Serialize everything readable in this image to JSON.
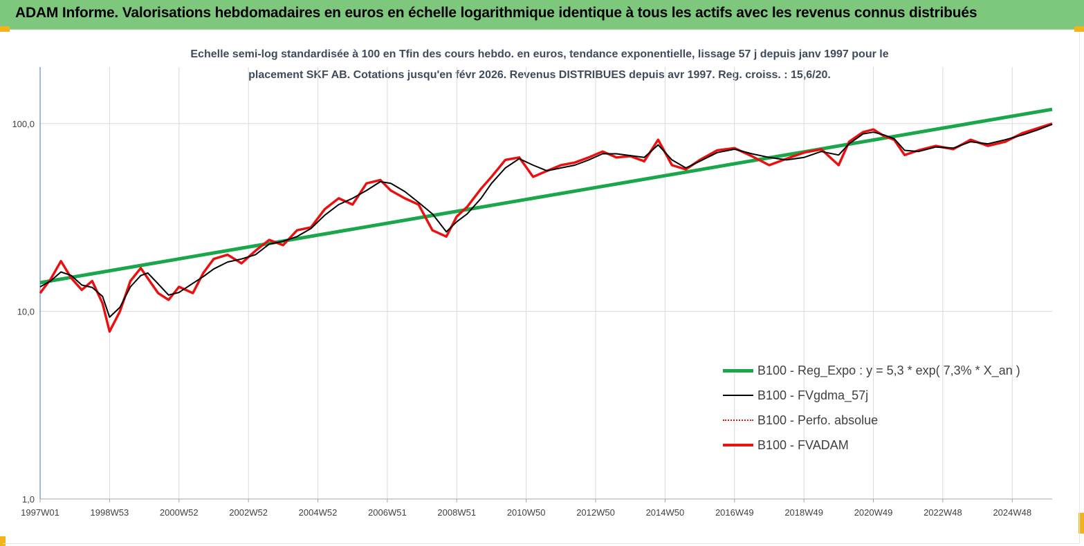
{
  "header": {
    "title": "ADAM Informe. Valorisations hebdomadaires en euros en échelle logarithmique identique à tous les actifs avec les revenus connus distribués"
  },
  "colors": {
    "header_bg": "#7ec87e",
    "corner_accent": "#f2b418",
    "trend": "#1aa64a",
    "smoothed": "#000000",
    "perf": "#e01010",
    "fvadam": "#ee1111",
    "grid": "#d9d9d9",
    "axis": "#4472c4"
  },
  "chart_data": {
    "type": "line",
    "title_lines": [
      "Echelle semi-log standardisée à 100 en Tfin des cours hebdo. en euros, tendance exponentielle, lissage 57 j depuis janv 1997 pour le",
      "placement SKF AB.  Cotations jusqu'en févr 2026. Revenus DISTRIBUES depuis avr 1997. Reg. croiss. : 15,6/20."
    ],
    "y_scale": "log",
    "ylim": [
      1,
      200
    ],
    "y_ticks": [
      1,
      10,
      100
    ],
    "y_tick_labels": [
      "1,0",
      "10,0",
      "100,0"
    ],
    "xlim": [
      1997.0,
      2026.15
    ],
    "x_ticks": [
      1997.0,
      1999.0,
      2001.0,
      2003.0,
      2005.0,
      2007.0,
      2009.0,
      2011.0,
      2013.0,
      2015.0,
      2017.0,
      2019.0,
      2021.0,
      2023.0,
      2025.0
    ],
    "x_tick_labels": [
      "1997W01",
      "1998W53",
      "2000W52",
      "2002W52",
      "2004W52",
      "2006W51",
      "2008W51",
      "2010W50",
      "2012W50",
      "2014W50",
      "2016W49",
      "2018W49",
      "2020W49",
      "2022W48",
      "2024W48"
    ],
    "grid": "vertical lines at x ticks, horizontal line at 10",
    "legend_position": "bottom-right",
    "series": [
      {
        "name": "B100 - Reg_Expo : y = 5,3 * exp( 7,3% *  X_an )",
        "style": "trend",
        "x": [
          1997.0,
          2026.15
        ],
        "y": [
          14.2,
          119.0
        ]
      },
      {
        "name": "B100 - FVgdma_57j",
        "style": "smoothed",
        "x": [
          1997.0,
          1997.3,
          1997.6,
          1997.9,
          1998.2,
          1998.5,
          1998.8,
          1999.0,
          1999.3,
          1999.6,
          1999.9,
          2000.1,
          2000.4,
          2000.7,
          2001.0,
          2001.4,
          2001.7,
          2002.0,
          2002.4,
          2002.8,
          2003.2,
          2003.6,
          2004.0,
          2004.4,
          2004.8,
          2005.2,
          2005.6,
          2006.0,
          2006.4,
          2006.8,
          2007.1,
          2007.5,
          2007.9,
          2008.3,
          2008.7,
          2009.0,
          2009.3,
          2009.7,
          2010.0,
          2010.4,
          2010.8,
          2011.2,
          2011.6,
          2012.0,
          2012.4,
          2012.8,
          2013.2,
          2013.6,
          2014.0,
          2014.4,
          2014.8,
          2015.2,
          2015.6,
          2016.0,
          2016.5,
          2017.0,
          2017.5,
          2018.0,
          2018.5,
          2019.0,
          2019.5,
          2020.0,
          2020.3,
          2020.7,
          2021.0,
          2021.3,
          2021.6,
          2021.9,
          2022.3,
          2022.8,
          2023.3,
          2023.8,
          2024.3,
          2024.8,
          2025.3,
          2025.7,
          2026.15
        ],
        "y": [
          13.5,
          14.5,
          16.2,
          15.5,
          13.8,
          13.4,
          12.0,
          9.3,
          10.5,
          13.5,
          15.5,
          16.0,
          14.0,
          12.2,
          12.6,
          14.1,
          15.3,
          16.8,
          18.3,
          19.0,
          20.0,
          22.8,
          23.6,
          25.0,
          27.6,
          32.5,
          37.0,
          40.0,
          44.0,
          49.0,
          48.0,
          43.5,
          38.0,
          33.0,
          26.5,
          30.0,
          33.0,
          40.0,
          48.0,
          58.0,
          65.0,
          60.0,
          56.0,
          58.0,
          60.0,
          64.0,
          69.0,
          69.0,
          67.5,
          66.0,
          77.0,
          64.0,
          58.0,
          63.0,
          70.0,
          73.0,
          69.0,
          66.0,
          64.0,
          66.0,
          71.0,
          68.0,
          78.0,
          88.0,
          90.0,
          87.0,
          83.0,
          72.0,
          71.0,
          75.0,
          74.0,
          80.0,
          78.0,
          82.0,
          87.0,
          92.0,
          99.0
        ]
      },
      {
        "name": "B100 - Perfo. absolue",
        "style": "perf",
        "x": [
          1997.0,
          1997.3,
          1997.6,
          1997.9,
          1998.2,
          1998.5,
          1998.8,
          1999.0,
          1999.3,
          1999.6,
          1999.9,
          2000.1,
          2000.4,
          2000.7,
          2001.0,
          2001.4,
          2001.7,
          2002.0,
          2002.4,
          2002.8,
          2003.2,
          2003.6,
          2004.0,
          2004.4,
          2004.8,
          2005.2,
          2005.6,
          2006.0,
          2006.4,
          2006.8,
          2007.1,
          2007.5,
          2007.9,
          2008.3,
          2008.7,
          2009.0,
          2009.3,
          2009.7,
          2010.0,
          2010.4,
          2010.8,
          2011.2,
          2011.6,
          2012.0,
          2012.4,
          2012.8,
          2013.2,
          2013.6,
          2014.0,
          2014.4,
          2014.8,
          2015.2,
          2015.6,
          2016.0,
          2016.5,
          2017.0,
          2017.5,
          2018.0,
          2018.5,
          2019.0,
          2019.5,
          2020.0,
          2020.3,
          2020.7,
          2021.0,
          2021.3,
          2021.6,
          2021.9,
          2022.3,
          2022.8,
          2023.3,
          2023.8,
          2024.3,
          2024.8,
          2025.3,
          2025.7,
          2026.15
        ],
        "y": [
          12.5,
          14.8,
          18.5,
          15.0,
          13.0,
          14.5,
          11.0,
          7.8,
          10.0,
          14.5,
          17.0,
          15.0,
          12.5,
          11.5,
          13.5,
          12.5,
          16.0,
          19.0,
          20.0,
          18.0,
          21.0,
          24.0,
          22.5,
          27.0,
          28.0,
          35.0,
          40.0,
          37.0,
          48.0,
          50.0,
          44.0,
          40.0,
          37.0,
          27.0,
          25.0,
          32.0,
          36.0,
          45.0,
          52.0,
          64.0,
          66.0,
          52.0,
          56.0,
          60.0,
          62.0,
          66.0,
          71.0,
          66.0,
          67.0,
          63.0,
          82.0,
          60.0,
          57.0,
          64.0,
          72.0,
          74.0,
          67.0,
          60.0,
          65.0,
          70.0,
          73.0,
          60.0,
          80.0,
          90.0,
          93.0,
          86.0,
          82.0,
          68.0,
          72.0,
          76.0,
          73.0,
          82.0,
          76.0,
          80.0,
          89.0,
          94.0,
          100.0
        ]
      },
      {
        "name": "B100 - FVADAM",
        "style": "fvadam",
        "x": [
          1997.0,
          1997.3,
          1997.6,
          1997.9,
          1998.2,
          1998.5,
          1998.8,
          1999.0,
          1999.3,
          1999.6,
          1999.9,
          2000.1,
          2000.4,
          2000.7,
          2001.0,
          2001.4,
          2001.7,
          2002.0,
          2002.4,
          2002.8,
          2003.2,
          2003.6,
          2004.0,
          2004.4,
          2004.8,
          2005.2,
          2005.6,
          2006.0,
          2006.4,
          2006.8,
          2007.1,
          2007.5,
          2007.9,
          2008.3,
          2008.7,
          2009.0,
          2009.3,
          2009.7,
          2010.0,
          2010.4,
          2010.8,
          2011.2,
          2011.6,
          2012.0,
          2012.4,
          2012.8,
          2013.2,
          2013.6,
          2014.0,
          2014.4,
          2014.8,
          2015.2,
          2015.6,
          2016.0,
          2016.5,
          2017.0,
          2017.5,
          2018.0,
          2018.5,
          2019.0,
          2019.5,
          2020.0,
          2020.3,
          2020.7,
          2021.0,
          2021.3,
          2021.6,
          2021.9,
          2022.3,
          2022.8,
          2023.3,
          2023.8,
          2024.3,
          2024.8,
          2025.3,
          2025.7,
          2026.15
        ],
        "y": [
          12.5,
          14.8,
          18.5,
          15.0,
          13.0,
          14.5,
          11.0,
          7.8,
          10.0,
          14.5,
          17.0,
          15.0,
          12.5,
          11.5,
          13.5,
          12.5,
          16.0,
          19.0,
          20.0,
          18.0,
          21.0,
          24.0,
          22.5,
          27.0,
          28.0,
          35.0,
          40.0,
          37.0,
          48.0,
          50.0,
          44.0,
          40.0,
          37.0,
          27.0,
          25.0,
          32.0,
          36.0,
          45.0,
          52.0,
          64.0,
          66.0,
          52.0,
          56.0,
          60.0,
          62.0,
          66.0,
          71.0,
          66.0,
          67.0,
          63.0,
          82.0,
          60.0,
          57.0,
          64.0,
          72.0,
          74.0,
          67.0,
          60.0,
          65.0,
          70.0,
          73.0,
          60.0,
          80.0,
          90.0,
          93.0,
          86.0,
          82.0,
          68.0,
          72.0,
          76.0,
          73.0,
          82.0,
          76.0,
          80.0,
          89.0,
          94.0,
          100.0
        ]
      }
    ]
  }
}
